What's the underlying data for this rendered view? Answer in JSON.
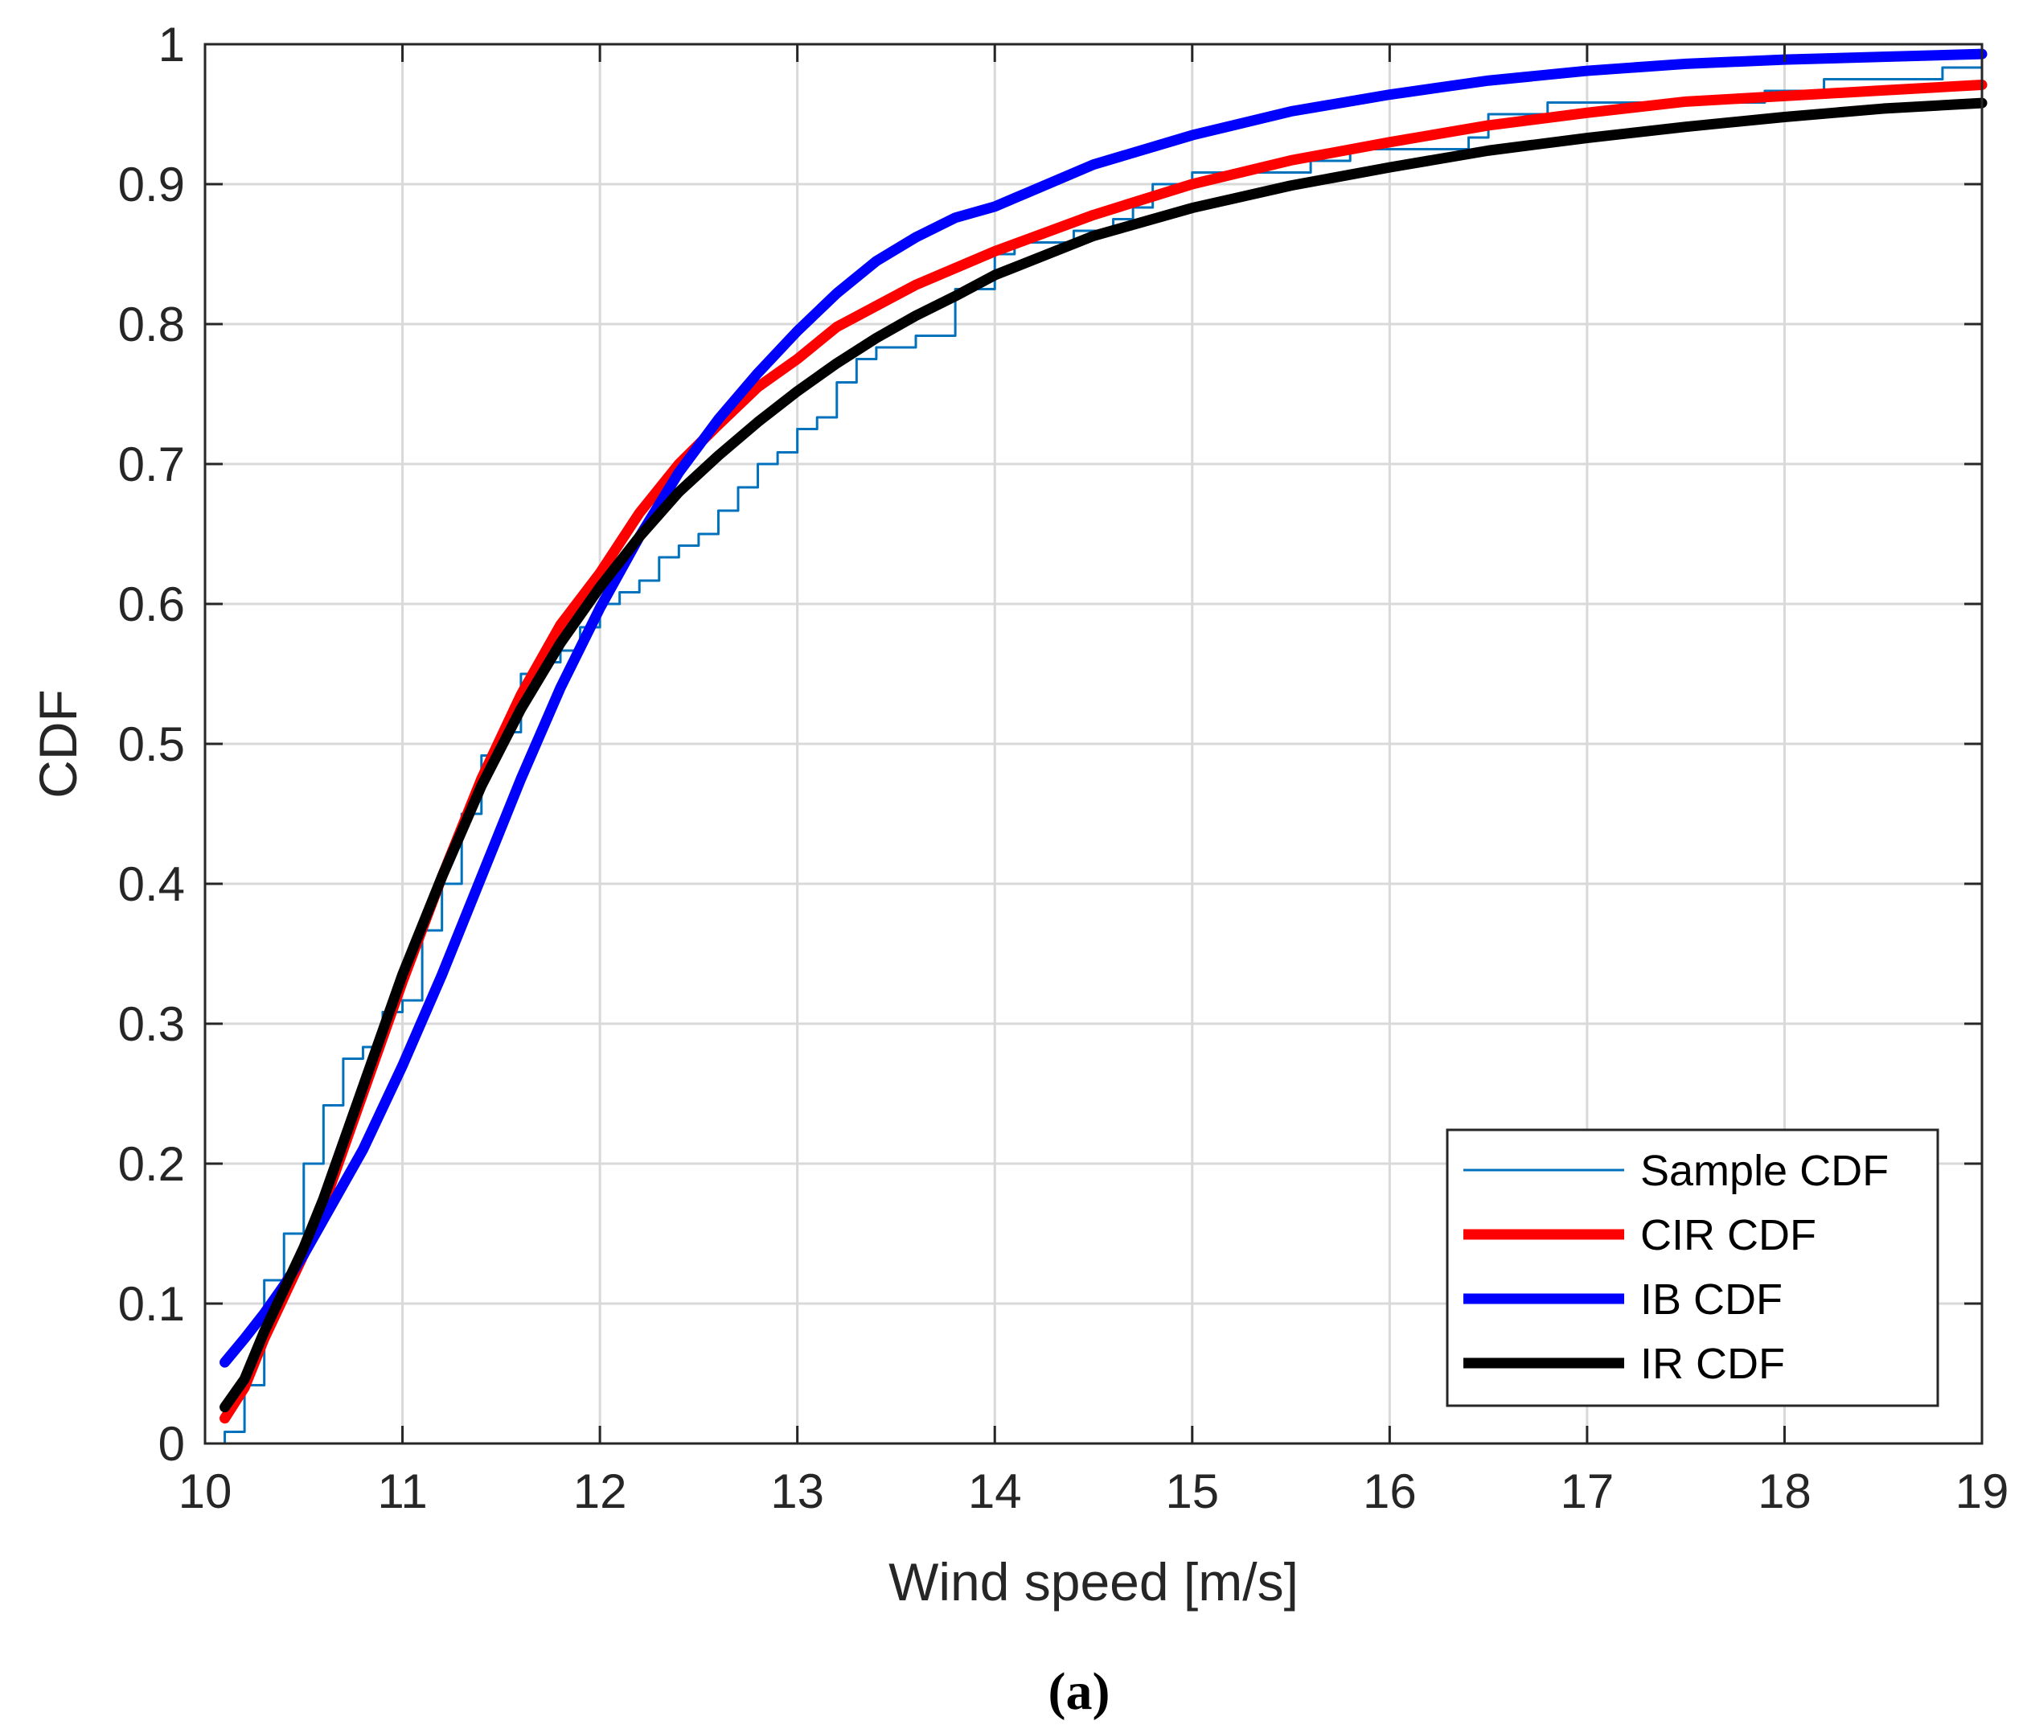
{
  "chart_data": {
    "type": "line",
    "title": "",
    "xlabel": "Wind speed [m/s]",
    "ylabel": "CDF",
    "caption": "(a)",
    "xlim": [
      10,
      19
    ],
    "ylim": [
      0,
      1
    ],
    "xticks": [
      10,
      11,
      12,
      13,
      14,
      15,
      16,
      17,
      18,
      19
    ],
    "yticks": [
      0,
      0.1,
      0.2,
      0.3,
      0.4,
      0.5,
      0.6,
      0.7,
      0.8,
      0.9,
      1
    ],
    "ytick_labels": [
      "0",
      "0.1",
      "0.2",
      "0.3",
      "0.4",
      "0.5",
      "0.6",
      "0.7",
      "0.8",
      "0.9",
      "1"
    ],
    "grid": true,
    "legend_position": "bottom-right",
    "series": [
      {
        "name": "Sample CDF",
        "style": "stairs",
        "color": "#0072BD",
        "x": [
          10.1,
          10.2,
          10.3,
          10.4,
          10.5,
          10.6,
          10.7,
          10.8,
          10.9,
          11.0,
          11.1,
          11.2,
          11.3,
          11.4,
          11.5,
          11.6,
          11.7,
          11.8,
          11.9,
          12.0,
          12.1,
          12.2,
          12.3,
          12.4,
          12.5,
          12.6,
          12.7,
          12.8,
          12.9,
          13.0,
          13.1,
          13.2,
          13.3,
          13.4,
          13.6,
          13.8,
          14.0,
          14.1,
          14.4,
          14.6,
          14.7,
          14.8,
          15.0,
          15.6,
          15.8,
          16.4,
          16.5,
          16.8,
          17.9,
          18.2,
          18.8,
          19.0
        ],
        "y": [
          0.0083,
          0.0417,
          0.1167,
          0.15,
          0.2,
          0.2417,
          0.275,
          0.2833,
          0.3083,
          0.3167,
          0.3667,
          0.4,
          0.45,
          0.4917,
          0.5083,
          0.55,
          0.5583,
          0.5667,
          0.5833,
          0.6,
          0.6083,
          0.6167,
          0.6333,
          0.6417,
          0.65,
          0.6667,
          0.6833,
          0.7,
          0.7083,
          0.725,
          0.7333,
          0.7583,
          0.775,
          0.7833,
          0.7917,
          0.825,
          0.85,
          0.8583,
          0.8667,
          0.875,
          0.8833,
          0.9,
          0.9083,
          0.9167,
          0.925,
          0.9333,
          0.95,
          0.9583,
          0.9667,
          0.975,
          0.9833,
          0.9917
        ]
      },
      {
        "name": "CIR CDF",
        "style": "line",
        "color": "#FF0000",
        "x": [
          10.1,
          10.2,
          10.3,
          10.4,
          10.5,
          10.6,
          10.8,
          11.0,
          11.2,
          11.4,
          11.6,
          11.8,
          12.0,
          12.2,
          12.4,
          12.6,
          12.8,
          13.0,
          13.2,
          13.4,
          13.6,
          13.8,
          14.0,
          14.5,
          15.0,
          15.5,
          16.0,
          16.5,
          17.0,
          17.5,
          18.0,
          18.5,
          19.0
        ],
        "y": [
          0.018,
          0.04,
          0.075,
          0.105,
          0.135,
          0.17,
          0.25,
          0.33,
          0.405,
          0.475,
          0.535,
          0.585,
          0.622,
          0.665,
          0.7,
          0.728,
          0.755,
          0.775,
          0.798,
          0.813,
          0.828,
          0.84,
          0.852,
          0.878,
          0.9,
          0.917,
          0.93,
          0.942,
          0.951,
          0.959,
          0.963,
          0.967,
          0.971
        ]
      },
      {
        "name": "IB CDF",
        "style": "line",
        "color": "#0000FF",
        "x": [
          10.1,
          10.2,
          10.3,
          10.4,
          10.5,
          10.6,
          10.8,
          11.0,
          11.2,
          11.4,
          11.6,
          11.8,
          12.0,
          12.2,
          12.4,
          12.6,
          12.8,
          13.0,
          13.2,
          13.4,
          13.6,
          13.8,
          14.0,
          14.5,
          15.0,
          15.5,
          16.0,
          16.5,
          17.0,
          17.5,
          18.0,
          18.5,
          19.0
        ],
        "y": [
          0.058,
          0.075,
          0.093,
          0.113,
          0.135,
          0.16,
          0.21,
          0.27,
          0.335,
          0.405,
          0.475,
          0.54,
          0.597,
          0.648,
          0.694,
          0.732,
          0.765,
          0.795,
          0.822,
          0.845,
          0.862,
          0.876,
          0.884,
          0.914,
          0.935,
          0.952,
          0.964,
          0.974,
          0.981,
          0.986,
          0.989,
          0.991,
          0.993
        ]
      },
      {
        "name": "IR CDF",
        "style": "line",
        "color": "#000000",
        "x": [
          10.1,
          10.2,
          10.3,
          10.4,
          10.5,
          10.6,
          10.8,
          11.0,
          11.2,
          11.4,
          11.6,
          11.8,
          12.0,
          12.2,
          12.4,
          12.6,
          12.8,
          13.0,
          13.2,
          13.4,
          13.6,
          13.8,
          14.0,
          14.5,
          15.0,
          15.5,
          16.0,
          16.5,
          17.0,
          17.5,
          18.0,
          18.5,
          19.0
        ],
        "y": [
          0.026,
          0.046,
          0.08,
          0.11,
          0.14,
          0.175,
          0.255,
          0.335,
          0.405,
          0.47,
          0.525,
          0.572,
          0.612,
          0.648,
          0.68,
          0.706,
          0.73,
          0.752,
          0.772,
          0.79,
          0.806,
          0.82,
          0.835,
          0.863,
          0.883,
          0.899,
          0.912,
          0.924,
          0.933,
          0.941,
          0.948,
          0.954,
          0.958
        ]
      }
    ]
  }
}
